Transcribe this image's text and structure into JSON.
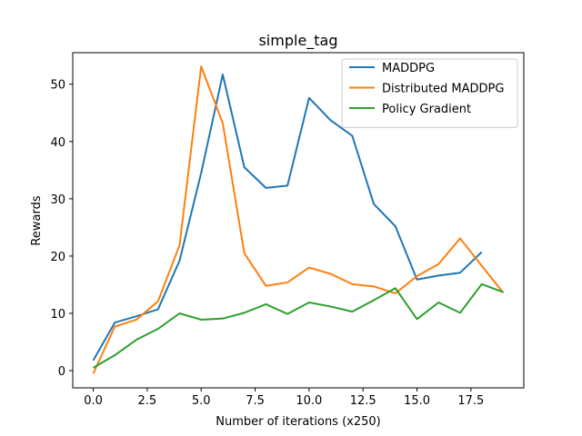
{
  "chart_data": {
    "type": "line",
    "title": "simple_tag",
    "xlabel": "Number of iterations (x250)",
    "ylabel": "Rewards",
    "xlim": [
      -0.95,
      19.95
    ],
    "ylim": [
      -3,
      55.5
    ],
    "xticks": [
      0,
      2.5,
      5,
      7.5,
      10,
      12.5,
      15,
      17.5
    ],
    "xtick_labels": [
      "0.0",
      "2.5",
      "5.0",
      "7.5",
      "10.0",
      "12.5",
      "15.0",
      "17.5"
    ],
    "yticks": [
      0,
      10,
      20,
      30,
      40,
      50
    ],
    "ytick_labels": [
      "0",
      "10",
      "20",
      "30",
      "40",
      "50"
    ],
    "grid": false,
    "legend_position": "top-right",
    "series": [
      {
        "name": " MADDPG",
        "color": "#1f77b4",
        "x": [
          0,
          1,
          2,
          3,
          4,
          5,
          6,
          7,
          8,
          9,
          10,
          11,
          12,
          13,
          14,
          15,
          16,
          17,
          18
        ],
        "values": [
          1.8,
          8.4,
          9.5,
          10.7,
          19.2,
          34.5,
          51.7,
          35.5,
          31.9,
          32.3,
          47.6,
          43.7,
          41.0,
          29.1,
          25.2,
          15.9,
          16.6,
          17.1,
          20.7
        ]
      },
      {
        "name": "Distributed MADDPG",
        "color": "#ff7f0e",
        "x": [
          0,
          1,
          2,
          3,
          4,
          5,
          6,
          7,
          8,
          9,
          10,
          11,
          12,
          13,
          14,
          15,
          16,
          17,
          18,
          19
        ],
        "values": [
          -0.5,
          7.7,
          8.9,
          12.1,
          21.9,
          53.1,
          43.2,
          20.5,
          14.8,
          15.4,
          18.0,
          16.9,
          15.1,
          14.7,
          13.5,
          16.5,
          18.6,
          23.1,
          18.3,
          13.6
        ]
      },
      {
        "name": "Policy Gradient",
        "color": "#2ca02c",
        "x": [
          0,
          1,
          2,
          3,
          4,
          5,
          6,
          7,
          8,
          9,
          10,
          11,
          12,
          13,
          14,
          15,
          16,
          17,
          18,
          19
        ],
        "values": [
          0.5,
          2.7,
          5.4,
          7.3,
          10.0,
          8.9,
          9.1,
          10.1,
          11.6,
          9.9,
          11.9,
          11.2,
          10.3,
          12.3,
          14.4,
          9.0,
          11.9,
          10.1,
          15.1,
          13.7
        ]
      }
    ]
  }
}
